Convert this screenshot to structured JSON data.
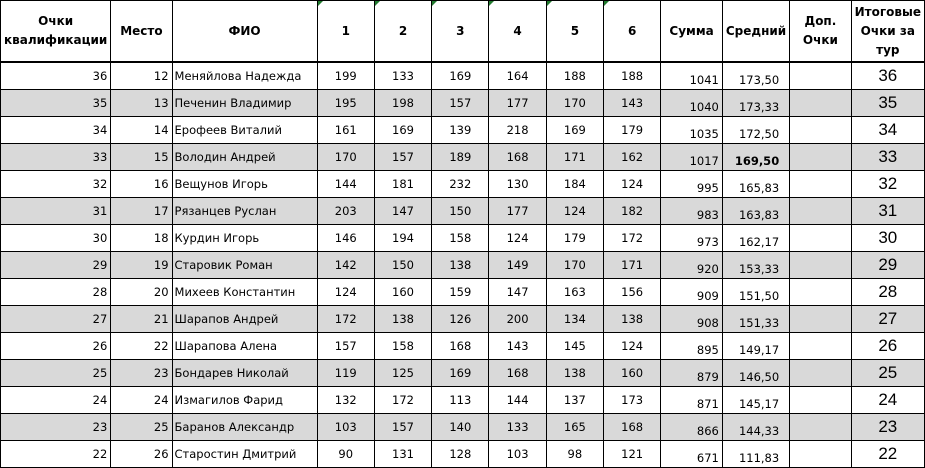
{
  "headers": [
    "Очки квалификации",
    "Место",
    "ФИО",
    "1",
    "2",
    "3",
    "4",
    "5",
    "6",
    "Сумма",
    "Средний",
    "Доп. Очки",
    "Итоговые Очки за тур"
  ],
  "rows": [
    {
      "qual": "36",
      "place": "12",
      "name": "Меняйлова Надежда",
      "g": [
        "199",
        "133",
        "169",
        "164",
        "188",
        "188"
      ],
      "sum": "1041",
      "avg": "173,50",
      "extra": "",
      "final": "36"
    },
    {
      "qual": "35",
      "place": "13",
      "name": "Печенин Владимир",
      "g": [
        "195",
        "198",
        "157",
        "177",
        "170",
        "143"
      ],
      "sum": "1040",
      "avg": "173,33",
      "extra": "",
      "final": "35"
    },
    {
      "qual": "34",
      "place": "14",
      "name": "Ерофеев Виталий",
      "g": [
        "161",
        "169",
        "139",
        "218",
        "169",
        "179"
      ],
      "sum": "1035",
      "avg": "172,50",
      "extra": "",
      "final": "34"
    },
    {
      "qual": "33",
      "place": "15",
      "name": "Володин Андрей",
      "g": [
        "170",
        "157",
        "189",
        "168",
        "171",
        "162"
      ],
      "sum": "1017",
      "avg": "169,50",
      "extra": "",
      "final": "33"
    },
    {
      "qual": "32",
      "place": "16",
      "name": "Вещунов Игорь",
      "g": [
        "144",
        "181",
        "232",
        "130",
        "184",
        "124"
      ],
      "sum": "995",
      "avg": "165,83",
      "extra": "",
      "final": "32"
    },
    {
      "qual": "31",
      "place": "17",
      "name": "Рязанцев Руслан",
      "g": [
        "203",
        "147",
        "150",
        "177",
        "124",
        "182"
      ],
      "sum": "983",
      "avg": "163,83",
      "extra": "",
      "final": "31"
    },
    {
      "qual": "30",
      "place": "18",
      "name": "Курдин Игорь",
      "g": [
        "146",
        "194",
        "158",
        "124",
        "179",
        "172"
      ],
      "sum": "973",
      "avg": "162,17",
      "extra": "",
      "final": "30"
    },
    {
      "qual": "29",
      "place": "19",
      "name": "Старовик Роман",
      "g": [
        "142",
        "150",
        "138",
        "149",
        "170",
        "171"
      ],
      "sum": "920",
      "avg": "153,33",
      "extra": "",
      "final": "29"
    },
    {
      "qual": "28",
      "place": "20",
      "name": "Михеев Константин",
      "g": [
        "124",
        "160",
        "159",
        "147",
        "163",
        "156"
      ],
      "sum": "909",
      "avg": "151,50",
      "extra": "",
      "final": "28"
    },
    {
      "qual": "27",
      "place": "21",
      "name": "Шарапов Андрей",
      "g": [
        "172",
        "138",
        "126",
        "200",
        "134",
        "138"
      ],
      "sum": "908",
      "avg": "151,33",
      "extra": "",
      "final": "27"
    },
    {
      "qual": "26",
      "place": "22",
      "name": "Шарапова Алена",
      "g": [
        "157",
        "158",
        "168",
        "143",
        "145",
        "124"
      ],
      "sum": "895",
      "avg": "149,17",
      "extra": "",
      "final": "26"
    },
    {
      "qual": "25",
      "place": "23",
      "name": "Бондарев Николай",
      "g": [
        "119",
        "125",
        "169",
        "168",
        "138",
        "160"
      ],
      "sum": "879",
      "avg": "146,50",
      "extra": "",
      "final": "25"
    },
    {
      "qual": "24",
      "place": "24",
      "name": "Измагилов Фарид",
      "g": [
        "132",
        "172",
        "113",
        "144",
        "137",
        "173"
      ],
      "sum": "871",
      "avg": "145,17",
      "extra": "",
      "final": "24"
    },
    {
      "qual": "23",
      "place": "25",
      "name": "Баранов Александр",
      "g": [
        "103",
        "157",
        "140",
        "133",
        "165",
        "168"
      ],
      "sum": "866",
      "avg": "144,33",
      "extra": "",
      "final": "23"
    },
    {
      "qual": "22",
      "place": "26",
      "name": "Старостин Дмитрий",
      "g": [
        "90",
        "131",
        "128",
        "103",
        "98",
        "121"
      ],
      "sum": "671",
      "avg": "111,83",
      "extra": "",
      "final": "22"
    }
  ],
  "bold_avg_row": 3,
  "colors": {
    "alt_row": "#d9d9d9",
    "comment_marker": "#217a2e"
  }
}
